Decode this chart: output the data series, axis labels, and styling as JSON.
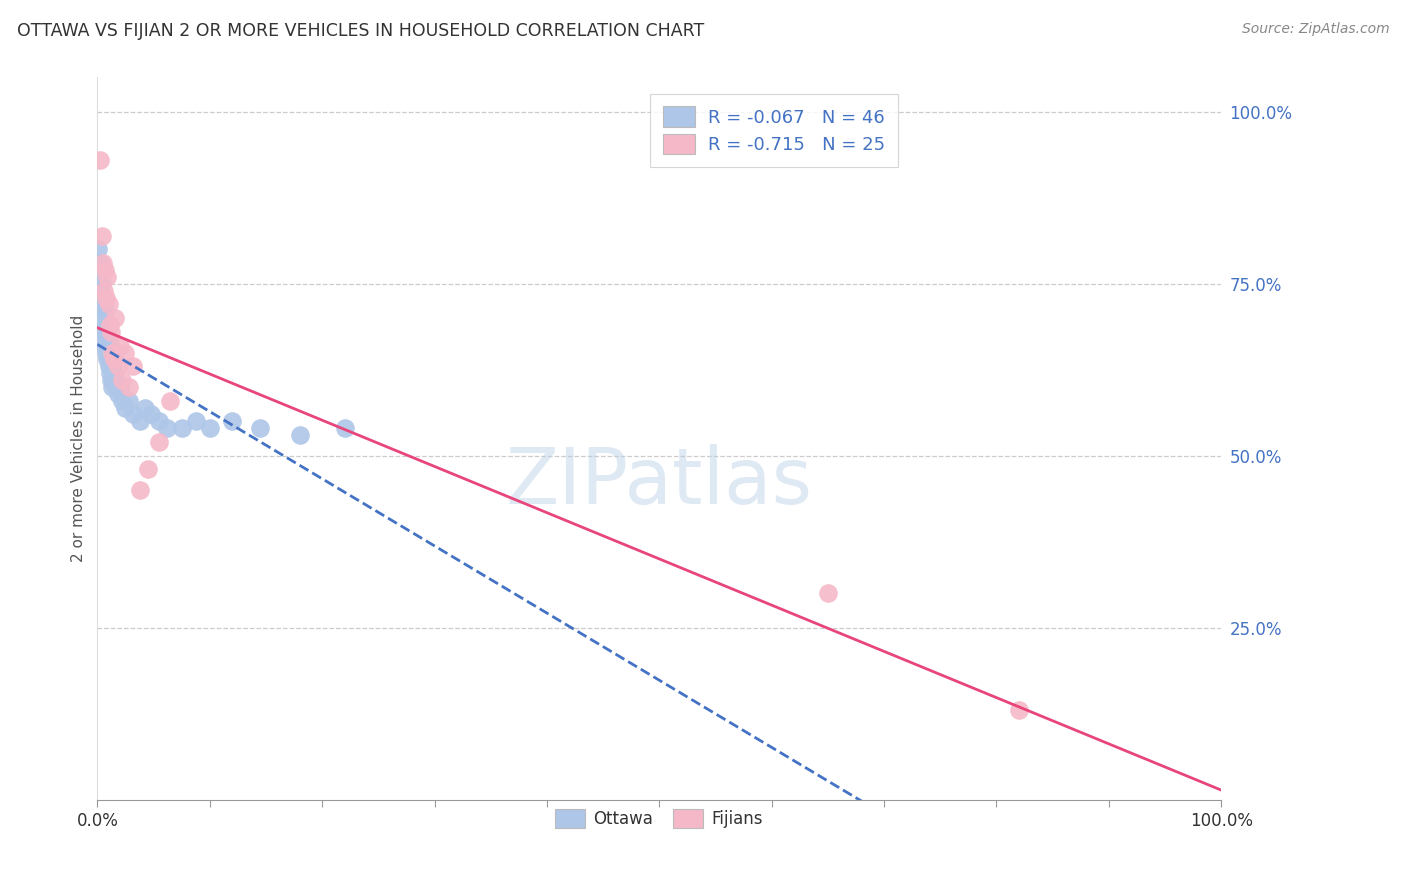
{
  "title": "OTTAWA VS FIJIAN 2 OR MORE VEHICLES IN HOUSEHOLD CORRELATION CHART",
  "source": "Source: ZipAtlas.com",
  "ylabel": "2 or more Vehicles in Household",
  "right_ytick_labels": [
    "100.0%",
    "75.0%",
    "50.0%",
    "25.0%"
  ],
  "right_ytick_values": [
    1.0,
    0.75,
    0.5,
    0.25
  ],
  "watermark": "ZIPatlas",
  "ottawa_color": "#aec6e8",
  "fijians_color": "#f5b8c8",
  "ottawa_line_color": "#4472c4",
  "fijians_line_color": "#e8457a",
  "ottawa_scatter_x": [
    0.001,
    0.002,
    0.003,
    0.003,
    0.004,
    0.004,
    0.005,
    0.005,
    0.006,
    0.006,
    0.007,
    0.007,
    0.008,
    0.008,
    0.009,
    0.009,
    0.01,
    0.01,
    0.011,
    0.011,
    0.012,
    0.012,
    0.013,
    0.013,
    0.014,
    0.015,
    0.016,
    0.017,
    0.018,
    0.02,
    0.022,
    0.025,
    0.028,
    0.032,
    0.038,
    0.042,
    0.048,
    0.055,
    0.062,
    0.075,
    0.088,
    0.1,
    0.12,
    0.145,
    0.18,
    0.22
  ],
  "ottawa_scatter_y": [
    0.8,
    0.78,
    0.76,
    0.72,
    0.75,
    0.7,
    0.73,
    0.68,
    0.72,
    0.67,
    0.71,
    0.66,
    0.69,
    0.65,
    0.68,
    0.64,
    0.67,
    0.63,
    0.66,
    0.62,
    0.65,
    0.61,
    0.64,
    0.6,
    0.63,
    0.62,
    0.61,
    0.6,
    0.59,
    0.6,
    0.58,
    0.57,
    0.58,
    0.56,
    0.55,
    0.57,
    0.56,
    0.55,
    0.54,
    0.54,
    0.55,
    0.54,
    0.55,
    0.54,
    0.53,
    0.54
  ],
  "fijians_scatter_x": [
    0.002,
    0.004,
    0.005,
    0.006,
    0.007,
    0.008,
    0.009,
    0.01,
    0.011,
    0.012,
    0.013,
    0.015,
    0.016,
    0.018,
    0.02,
    0.022,
    0.025,
    0.028,
    0.032,
    0.038,
    0.045,
    0.055,
    0.065,
    0.65,
    0.82
  ],
  "fijians_scatter_y": [
    0.93,
    0.82,
    0.78,
    0.74,
    0.77,
    0.73,
    0.76,
    0.72,
    0.69,
    0.68,
    0.65,
    0.64,
    0.7,
    0.63,
    0.66,
    0.61,
    0.65,
    0.6,
    0.63,
    0.45,
    0.48,
    0.52,
    0.58,
    0.3,
    0.13
  ],
  "xlim": [
    0.0,
    1.0
  ],
  "ylim": [
    0.0,
    1.05
  ],
  "grid_color": "#cccccc",
  "background_color": "#ffffff",
  "legend_labels_top": [
    "R = -0.067   N = 46",
    "R = -0.715   N = 25"
  ],
  "legend_labels_bottom": [
    "Ottawa",
    "Fijians"
  ]
}
